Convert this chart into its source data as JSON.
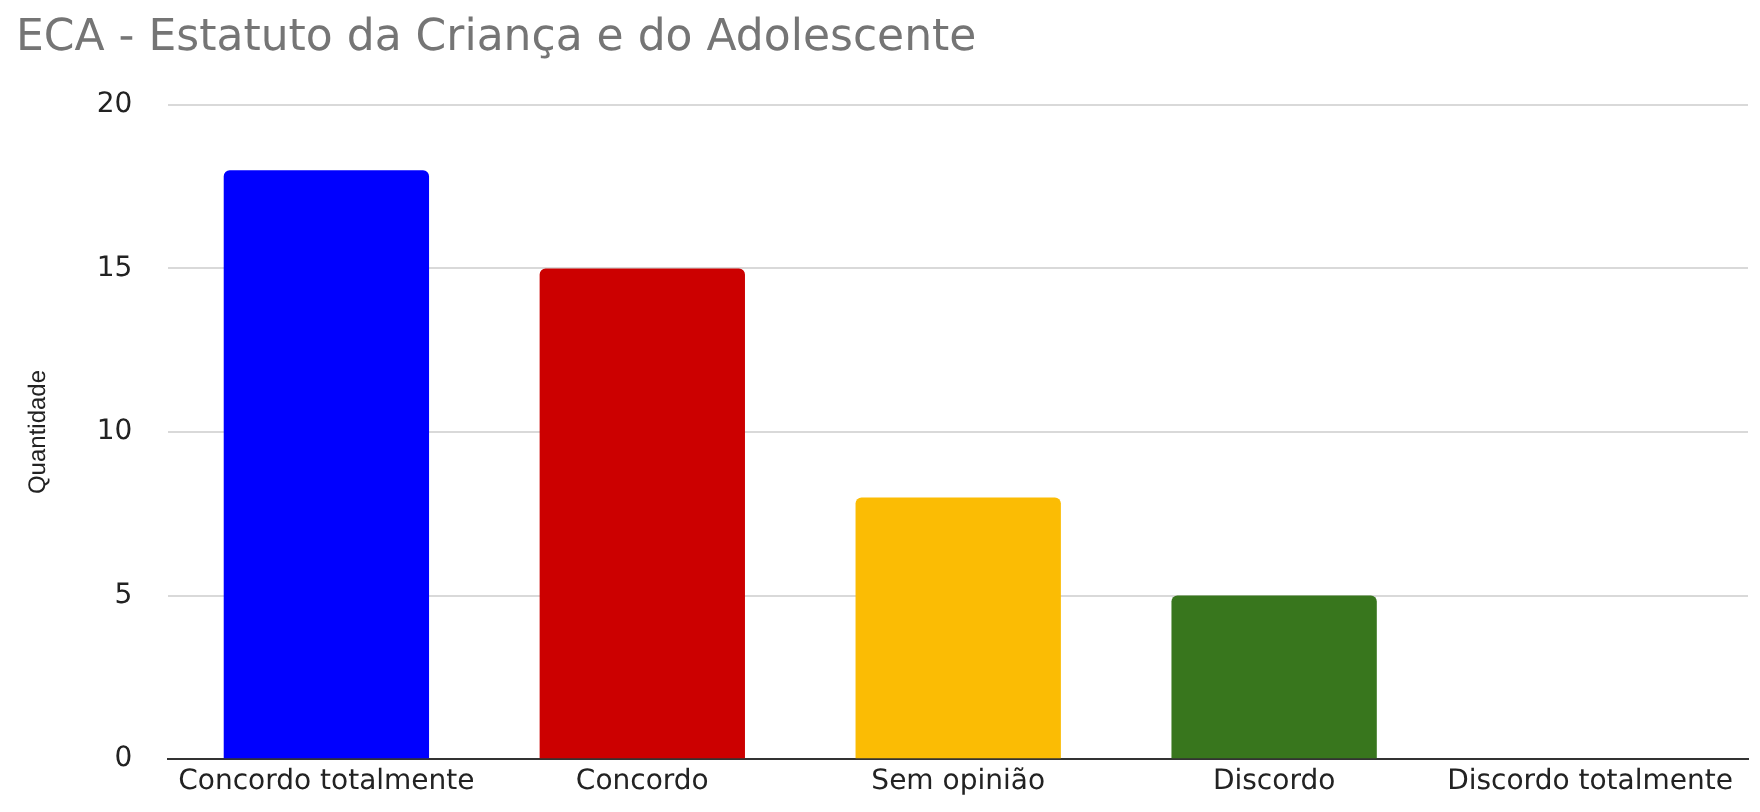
{
  "chart_data": {
    "type": "bar",
    "title": "ECA - Estatuto da Criança e do Adolescente",
    "ylabel": "Quantidade",
    "categories": [
      "Concordo totalmente",
      "Concordo",
      "Sem opinião",
      "Discordo",
      "Discordo totalmente"
    ],
    "values": [
      18,
      15,
      8,
      5,
      0
    ],
    "colors": [
      "#0000ff",
      "#cc0000",
      "#fbbc04",
      "#38761d",
      "#999999"
    ],
    "ylim": [
      0,
      20
    ],
    "yticks": [
      0,
      5,
      10,
      15,
      20
    ],
    "grid": "y",
    "legend": false
  }
}
